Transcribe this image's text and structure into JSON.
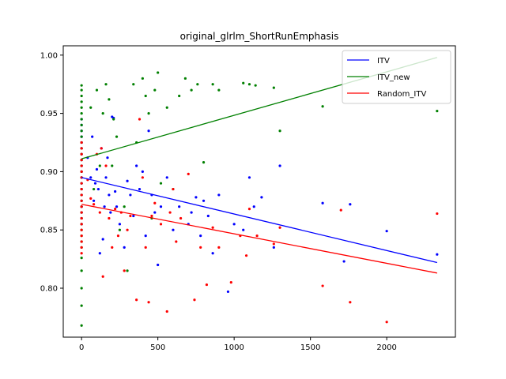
{
  "chart_data": {
    "type": "scatter",
    "title": "original_glrlm_ShortRunEmphasis",
    "xlabel": "",
    "ylabel": "",
    "xlim": [
      -120,
      2450
    ],
    "ylim": [
      0.758,
      1.008
    ],
    "xticks": [
      0,
      500,
      1000,
      1500,
      2000
    ],
    "xtick_labels": [
      "0",
      "500",
      "1000",
      "1500",
      "2000"
    ],
    "yticks": [
      0.8,
      0.85,
      0.9,
      0.95,
      1.0
    ],
    "ytick_labels": [
      "0.80",
      "0.85",
      "0.90",
      "0.95",
      "1.00"
    ],
    "grid": false,
    "legend_position": "top-right",
    "series": [
      {
        "name": "ITV",
        "color": "#0000ff",
        "trend": {
          "x": [
            0,
            2330
          ],
          "y": [
            0.895,
            0.822
          ]
        },
        "points": [
          [
            0,
            0.945
          ],
          [
            0,
            0.94
          ],
          [
            0,
            0.935
          ],
          [
            0,
            0.93
          ],
          [
            0,
            0.925
          ],
          [
            0,
            0.92
          ],
          [
            0,
            0.915
          ],
          [
            0,
            0.91
          ],
          [
            0,
            0.905
          ],
          [
            0,
            0.9
          ],
          [
            0,
            0.895
          ],
          [
            0,
            0.89
          ],
          [
            0,
            0.885
          ],
          [
            0,
            0.88
          ],
          [
            0,
            0.875
          ],
          [
            0,
            0.87
          ],
          [
            0,
            0.865
          ],
          [
            0,
            0.86
          ],
          [
            0,
            0.855
          ],
          [
            40,
            0.912
          ],
          [
            60,
            0.895
          ],
          [
            70,
            0.93
          ],
          [
            80,
            0.875
          ],
          [
            90,
            0.89
          ],
          [
            100,
            0.902
          ],
          [
            110,
            0.885
          ],
          [
            120,
            0.83
          ],
          [
            130,
            0.92
          ],
          [
            140,
            0.842
          ],
          [
            150,
            0.87
          ],
          [
            160,
            0.895
          ],
          [
            170,
            0.912
          ],
          [
            180,
            0.88
          ],
          [
            190,
            0.865
          ],
          [
            200,
            0.947
          ],
          [
            210,
            0.946
          ],
          [
            220,
            0.883
          ],
          [
            230,
            0.87
          ],
          [
            250,
            0.855
          ],
          [
            280,
            0.835
          ],
          [
            300,
            0.892
          ],
          [
            320,
            0.88
          ],
          [
            340,
            0.862
          ],
          [
            360,
            0.905
          ],
          [
            380,
            0.885
          ],
          [
            400,
            0.9
          ],
          [
            420,
            0.845
          ],
          [
            440,
            0.935
          ],
          [
            460,
            0.88
          ],
          [
            480,
            0.865
          ],
          [
            500,
            0.82
          ],
          [
            520,
            0.87
          ],
          [
            560,
            0.895
          ],
          [
            600,
            0.85
          ],
          [
            640,
            0.87
          ],
          [
            700,
            0.855
          ],
          [
            720,
            0.865
          ],
          [
            750,
            0.878
          ],
          [
            780,
            0.845
          ],
          [
            800,
            0.875
          ],
          [
            830,
            0.862
          ],
          [
            860,
            0.83
          ],
          [
            900,
            0.88
          ],
          [
            960,
            0.797
          ],
          [
            1000,
            0.855
          ],
          [
            1060,
            0.85
          ],
          [
            1100,
            0.895
          ],
          [
            1130,
            0.87
          ],
          [
            1180,
            0.878
          ],
          [
            1260,
            0.835
          ],
          [
            1300,
            0.905
          ],
          [
            1580,
            0.873
          ],
          [
            1720,
            0.823
          ],
          [
            1760,
            0.872
          ],
          [
            2000,
            0.849
          ],
          [
            2330,
            0.829
          ]
        ]
      },
      {
        "name": "ITV_new",
        "color": "#008000",
        "trend": {
          "x": [
            0,
            2330
          ],
          "y": [
            0.911,
            0.998
          ]
        },
        "points": [
          [
            0,
            0.974
          ],
          [
            0,
            0.97
          ],
          [
            0,
            0.965
          ],
          [
            0,
            0.96
          ],
          [
            0,
            0.955
          ],
          [
            0,
            0.95
          ],
          [
            0,
            0.945
          ],
          [
            0,
            0.94
          ],
          [
            0,
            0.935
          ],
          [
            0,
            0.93
          ],
          [
            0,
            0.925
          ],
          [
            0,
            0.92
          ],
          [
            0,
            0.915
          ],
          [
            0,
            0.91
          ],
          [
            0,
            0.905
          ],
          [
            0,
            0.9
          ],
          [
            0,
            0.895
          ],
          [
            0,
            0.89
          ],
          [
            0,
            0.885
          ],
          [
            0,
            0.88
          ],
          [
            0,
            0.875
          ],
          [
            0,
            0.87
          ],
          [
            0,
            0.865
          ],
          [
            0,
            0.86
          ],
          [
            0,
            0.855
          ],
          [
            0,
            0.85
          ],
          [
            0,
            0.845
          ],
          [
            0,
            0.84
          ],
          [
            0,
            0.835
          ],
          [
            0,
            0.826
          ],
          [
            0,
            0.815
          ],
          [
            0,
            0.8
          ],
          [
            0,
            0.785
          ],
          [
            0,
            0.768
          ],
          [
            60,
            0.955
          ],
          [
            80,
            0.885
          ],
          [
            100,
            0.97
          ],
          [
            120,
            0.905
          ],
          [
            140,
            0.95
          ],
          [
            160,
            0.975
          ],
          [
            180,
            0.962
          ],
          [
            200,
            0.905
          ],
          [
            210,
            0.945
          ],
          [
            230,
            0.93
          ],
          [
            250,
            0.85
          ],
          [
            280,
            0.87
          ],
          [
            300,
            0.815
          ],
          [
            340,
            0.975
          ],
          [
            360,
            0.925
          ],
          [
            400,
            0.98
          ],
          [
            420,
            0.965
          ],
          [
            440,
            0.95
          ],
          [
            460,
            0.86
          ],
          [
            480,
            0.97
          ],
          [
            500,
            0.985
          ],
          [
            520,
            0.89
          ],
          [
            560,
            0.955
          ],
          [
            600,
            0.885
          ],
          [
            640,
            0.965
          ],
          [
            680,
            0.98
          ],
          [
            720,
            0.97
          ],
          [
            760,
            0.975
          ],
          [
            800,
            0.908
          ],
          [
            860,
            0.975
          ],
          [
            900,
            0.97
          ],
          [
            1060,
            0.976
          ],
          [
            1100,
            0.975
          ],
          [
            1140,
            0.974
          ],
          [
            1260,
            0.972
          ],
          [
            1300,
            0.935
          ],
          [
            1580,
            0.956
          ],
          [
            2330,
            0.952
          ]
        ]
      },
      {
        "name": "Random_ITV",
        "color": "#ff0000",
        "trend": {
          "x": [
            0,
            2330
          ],
          "y": [
            0.872,
            0.813
          ]
        },
        "points": [
          [
            0,
            0.925
          ],
          [
            0,
            0.92
          ],
          [
            0,
            0.915
          ],
          [
            0,
            0.91
          ],
          [
            0,
            0.905
          ],
          [
            0,
            0.9
          ],
          [
            0,
            0.895
          ],
          [
            0,
            0.89
          ],
          [
            0,
            0.885
          ],
          [
            0,
            0.88
          ],
          [
            0,
            0.875
          ],
          [
            0,
            0.87
          ],
          [
            0,
            0.865
          ],
          [
            0,
            0.86
          ],
          [
            0,
            0.855
          ],
          [
            0,
            0.85
          ],
          [
            0,
            0.845
          ],
          [
            0,
            0.84
          ],
          [
            0,
            0.835
          ],
          [
            0,
            0.83
          ],
          [
            40,
            0.893
          ],
          [
            60,
            0.877
          ],
          [
            80,
            0.872
          ],
          [
            100,
            0.915
          ],
          [
            120,
            0.865
          ],
          [
            130,
            0.92
          ],
          [
            140,
            0.81
          ],
          [
            160,
            0.905
          ],
          [
            180,
            0.86
          ],
          [
            200,
            0.835
          ],
          [
            220,
            0.868
          ],
          [
            240,
            0.845
          ],
          [
            260,
            0.865
          ],
          [
            280,
            0.815
          ],
          [
            300,
            0.85
          ],
          [
            320,
            0.862
          ],
          [
            360,
            0.79
          ],
          [
            380,
            0.945
          ],
          [
            400,
            0.895
          ],
          [
            420,
            0.835
          ],
          [
            440,
            0.788
          ],
          [
            460,
            0.862
          ],
          [
            480,
            0.873
          ],
          [
            520,
            0.855
          ],
          [
            560,
            0.78
          ],
          [
            580,
            0.865
          ],
          [
            600,
            0.885
          ],
          [
            620,
            0.84
          ],
          [
            650,
            0.86
          ],
          [
            700,
            0.898
          ],
          [
            740,
            0.79
          ],
          [
            780,
            0.835
          ],
          [
            820,
            0.803
          ],
          [
            860,
            0.852
          ],
          [
            900,
            0.835
          ],
          [
            980,
            0.805
          ],
          [
            1040,
            0.845
          ],
          [
            1080,
            0.828
          ],
          [
            1100,
            0.868
          ],
          [
            1150,
            0.845
          ],
          [
            1260,
            0.838
          ],
          [
            1300,
            0.852
          ],
          [
            1580,
            0.802
          ],
          [
            1700,
            0.867
          ],
          [
            1760,
            0.788
          ],
          [
            2000,
            0.771
          ],
          [
            2330,
            0.864
          ]
        ]
      }
    ]
  }
}
